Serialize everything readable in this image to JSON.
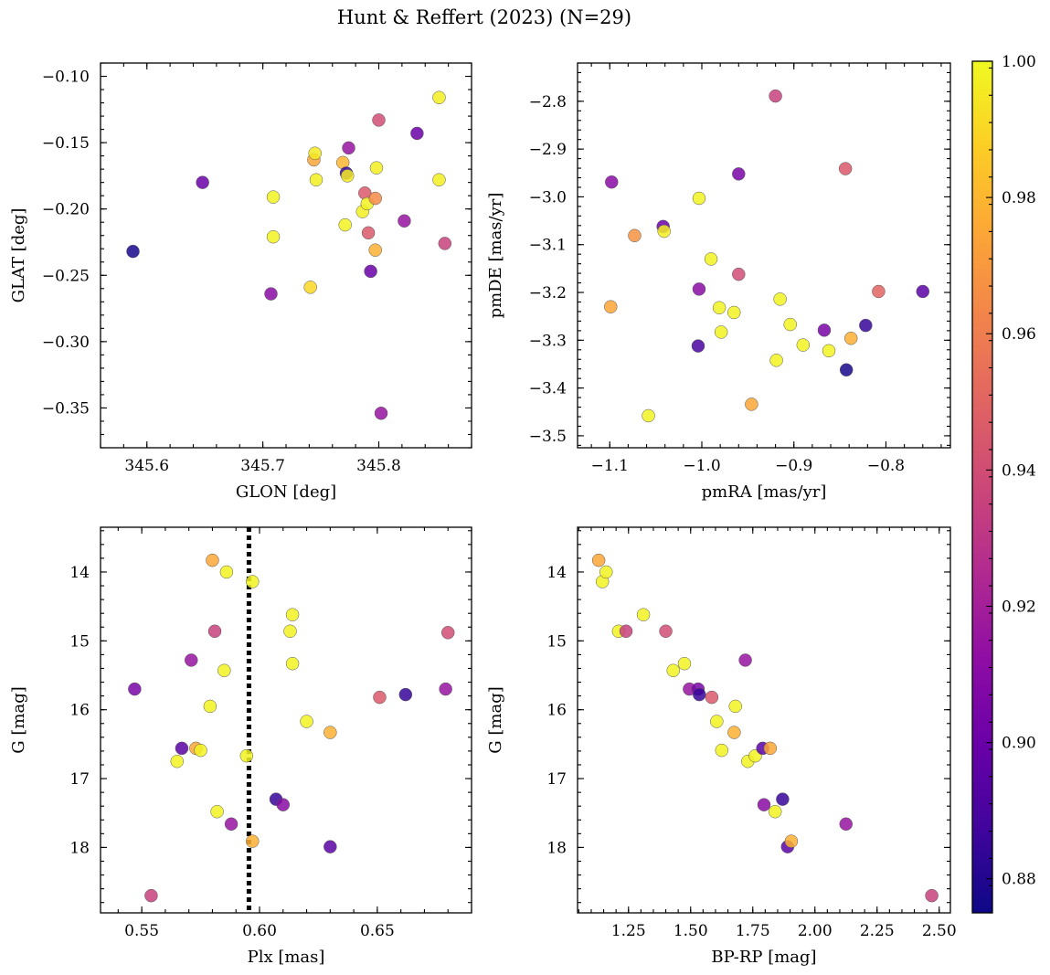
{
  "figure": {
    "title": "Hunt & Reffert (2023) (N=29)"
  },
  "colorbar": {
    "min": 0.875,
    "max": 1.0,
    "colormap": "plasma",
    "tick_labels": [
      "0.88",
      "0.90",
      "0.92",
      "0.94",
      "0.96",
      "0.98",
      "1.00"
    ],
    "ticks": [
      0.88,
      0.9,
      0.92,
      0.94,
      0.96,
      0.98,
      1.0
    ]
  },
  "chart_data": [
    {
      "type": "scatter",
      "xlabel": "GLON [deg]",
      "ylabel": "GLAT [deg]",
      "xlim": [
        345.56,
        345.88
      ],
      "ylim": [
        -0.38,
        -0.09
      ],
      "x_ticks": [
        345.6,
        345.7,
        345.8
      ],
      "x_tick_labels": [
        "345.6",
        "345.7",
        "345.8"
      ],
      "y_ticks": [
        -0.35,
        -0.3,
        -0.25,
        -0.2,
        -0.15,
        -0.1
      ],
      "y_tick_labels": [
        "−0.35",
        "−0.30",
        "−0.25",
        "−0.20",
        "−0.15",
        "−0.10"
      ],
      "y_inverted": false,
      "points": [
        {
          "x": 345.588,
          "y": -0.232,
          "c": 0.878
        },
        {
          "x": 345.648,
          "y": -0.18,
          "c": 0.9
        },
        {
          "x": 345.707,
          "y": -0.264,
          "c": 0.91
        },
        {
          "x": 345.709,
          "y": -0.191,
          "c": 0.998
        },
        {
          "x": 345.709,
          "y": -0.221,
          "c": 0.998
        },
        {
          "x": 345.741,
          "y": -0.259,
          "c": 0.99
        },
        {
          "x": 345.744,
          "y": -0.163,
          "c": 0.975
        },
        {
          "x": 345.745,
          "y": -0.158,
          "c": 0.996
        },
        {
          "x": 345.746,
          "y": -0.178,
          "c": 0.997
        },
        {
          "x": 345.769,
          "y": -0.165,
          "c": 0.98
        },
        {
          "x": 345.771,
          "y": -0.212,
          "c": 0.998
        },
        {
          "x": 345.772,
          "y": -0.173,
          "c": 0.885
        },
        {
          "x": 345.773,
          "y": -0.175,
          "c": 0.996
        },
        {
          "x": 345.774,
          "y": -0.154,
          "c": 0.915
        },
        {
          "x": 345.786,
          "y": -0.202,
          "c": 0.997
        },
        {
          "x": 345.788,
          "y": -0.188,
          "c": 0.945
        },
        {
          "x": 345.79,
          "y": -0.196,
          "c": 0.998
        },
        {
          "x": 345.791,
          "y": -0.218,
          "c": 0.945
        },
        {
          "x": 345.793,
          "y": -0.247,
          "c": 0.9
        },
        {
          "x": 345.797,
          "y": -0.231,
          "c": 0.978
        },
        {
          "x": 345.797,
          "y": -0.192,
          "c": 0.965
        },
        {
          "x": 345.798,
          "y": -0.169,
          "c": 0.997
        },
        {
          "x": 345.8,
          "y": -0.133,
          "c": 0.94
        },
        {
          "x": 345.802,
          "y": -0.354,
          "c": 0.915
        },
        {
          "x": 345.822,
          "y": -0.209,
          "c": 0.915
        },
        {
          "x": 345.833,
          "y": -0.143,
          "c": 0.9
        },
        {
          "x": 345.852,
          "y": -0.116,
          "c": 0.997
        },
        {
          "x": 345.852,
          "y": -0.178,
          "c": 0.997
        },
        {
          "x": 345.857,
          "y": -0.226,
          "c": 0.935
        }
      ]
    },
    {
      "type": "scatter",
      "xlabel": "pmRA [mas/yr]",
      "ylabel": "pmDE [mas/yr]",
      "xlim": [
        -1.135,
        -0.73
      ],
      "ylim": [
        -3.525,
        -2.72
      ],
      "x_ticks": [
        -1.1,
        -1.0,
        -0.9,
        -0.8
      ],
      "x_tick_labels": [
        "−1.1",
        "−1.0",
        "−0.9",
        "−0.8"
      ],
      "y_ticks": [
        -3.5,
        -3.4,
        -3.3,
        -3.2,
        -3.1,
        -3.0,
        -2.9,
        -2.8
      ],
      "y_tick_labels": [
        "−3.5",
        "−3.4",
        "−3.3",
        "−3.2",
        "−3.1",
        "−3.0",
        "−2.9",
        "−2.8"
      ],
      "y_inverted": false,
      "points": [
        {
          "x": -1.099,
          "y": -3.23,
          "c": 0.975
        },
        {
          "x": -1.098,
          "y": -2.969,
          "c": 0.91
        },
        {
          "x": -1.073,
          "y": -3.081,
          "c": 0.968
        },
        {
          "x": -1.058,
          "y": -3.458,
          "c": 0.998
        },
        {
          "x": -1.042,
          "y": -3.062,
          "c": 0.9
        },
        {
          "x": -1.041,
          "y": -3.072,
          "c": 0.997
        },
        {
          "x": -1.003,
          "y": -3.003,
          "c": 0.998
        },
        {
          "x": -1.003,
          "y": -3.193,
          "c": 0.91
        },
        {
          "x": -1.004,
          "y": -3.312,
          "c": 0.89
        },
        {
          "x": -0.99,
          "y": -3.13,
          "c": 0.998
        },
        {
          "x": -0.981,
          "y": -3.232,
          "c": 0.998
        },
        {
          "x": -0.979,
          "y": -3.283,
          "c": 0.998
        },
        {
          "x": -0.965,
          "y": -3.242,
          "c": 0.998
        },
        {
          "x": -0.96,
          "y": -2.952,
          "c": 0.905
        },
        {
          "x": -0.96,
          "y": -3.162,
          "c": 0.94
        },
        {
          "x": -0.946,
          "y": -3.434,
          "c": 0.975
        },
        {
          "x": -0.92,
          "y": -2.789,
          "c": 0.935
        },
        {
          "x": -0.919,
          "y": -3.342,
          "c": 0.998
        },
        {
          "x": -0.915,
          "y": -3.214,
          "c": 0.998
        },
        {
          "x": -0.904,
          "y": -3.267,
          "c": 0.998
        },
        {
          "x": -0.89,
          "y": -3.31,
          "c": 0.998
        },
        {
          "x": -0.867,
          "y": -3.279,
          "c": 0.905
        },
        {
          "x": -0.862,
          "y": -3.322,
          "c": 0.998
        },
        {
          "x": -0.844,
          "y": -2.941,
          "c": 0.945
        },
        {
          "x": -0.843,
          "y": -3.362,
          "c": 0.878
        },
        {
          "x": -0.838,
          "y": -3.296,
          "c": 0.978
        },
        {
          "x": -0.822,
          "y": -3.269,
          "c": 0.885
        },
        {
          "x": -0.808,
          "y": -3.198,
          "c": 0.95
        },
        {
          "x": -0.76,
          "y": -3.198,
          "c": 0.895
        }
      ]
    },
    {
      "type": "scatter",
      "xlabel": "Plx [mas]",
      "ylabel": "G [mag]",
      "xlim": [
        0.5325,
        0.69
      ],
      "ylim": [
        18.95,
        13.35
      ],
      "x_ticks": [
        0.55,
        0.6,
        0.65
      ],
      "x_tick_labels": [
        "0.55",
        "0.60",
        "0.65"
      ],
      "y_ticks": [
        14,
        15,
        16,
        17,
        18
      ],
      "y_tick_labels": [
        "14",
        "15",
        "16",
        "17",
        "18"
      ],
      "y_inverted": true,
      "vline": {
        "x": 0.5955,
        "style": "dotted",
        "color": "#000000"
      },
      "points": [
        {
          "x": 0.547,
          "y": 15.7,
          "c": 0.905
        },
        {
          "x": 0.554,
          "y": 18.7,
          "c": 0.935
        },
        {
          "x": 0.565,
          "y": 16.75,
          "c": 0.998
        },
        {
          "x": 0.567,
          "y": 16.56,
          "c": 0.895
        },
        {
          "x": 0.571,
          "y": 15.28,
          "c": 0.915
        },
        {
          "x": 0.573,
          "y": 16.56,
          "c": 0.975
        },
        {
          "x": 0.575,
          "y": 16.59,
          "c": 0.998
        },
        {
          "x": 0.579,
          "y": 15.95,
          "c": 0.998
        },
        {
          "x": 0.58,
          "y": 13.83,
          "c": 0.975
        },
        {
          "x": 0.581,
          "y": 14.86,
          "c": 0.935
        },
        {
          "x": 0.582,
          "y": 17.48,
          "c": 0.998
        },
        {
          "x": 0.585,
          "y": 15.43,
          "c": 0.998
        },
        {
          "x": 0.586,
          "y": 14.0,
          "c": 0.998
        },
        {
          "x": 0.588,
          "y": 17.66,
          "c": 0.915
        },
        {
          "x": 0.5945,
          "y": 16.67,
          "c": 0.998
        },
        {
          "x": 0.597,
          "y": 14.14,
          "c": 0.998
        },
        {
          "x": 0.597,
          "y": 17.91,
          "c": 0.978
        },
        {
          "x": 0.607,
          "y": 17.3,
          "c": 0.885
        },
        {
          "x": 0.61,
          "y": 17.38,
          "c": 0.91
        },
        {
          "x": 0.613,
          "y": 14.86,
          "c": 0.998
        },
        {
          "x": 0.614,
          "y": 14.62,
          "c": 0.998
        },
        {
          "x": 0.614,
          "y": 15.33,
          "c": 0.998
        },
        {
          "x": 0.62,
          "y": 16.17,
          "c": 0.998
        },
        {
          "x": 0.63,
          "y": 16.33,
          "c": 0.978
        },
        {
          "x": 0.63,
          "y": 17.99,
          "c": 0.895
        },
        {
          "x": 0.651,
          "y": 15.82,
          "c": 0.945
        },
        {
          "x": 0.662,
          "y": 15.78,
          "c": 0.885
        },
        {
          "x": 0.679,
          "y": 15.7,
          "c": 0.915
        },
        {
          "x": 0.68,
          "y": 14.88,
          "c": 0.94
        }
      ]
    },
    {
      "type": "scatter",
      "xlabel": "BP-RP [mag]",
      "ylabel": "G [mag]",
      "xlim": [
        1.045,
        2.545
      ],
      "ylim": [
        18.95,
        13.35
      ],
      "x_ticks": [
        1.25,
        1.5,
        1.75,
        2.0,
        2.25,
        2.5
      ],
      "x_tick_labels": [
        "1.25",
        "1.50",
        "1.75",
        "2.00",
        "2.25",
        "2.50"
      ],
      "y_ticks": [
        14,
        15,
        16,
        17,
        18
      ],
      "y_tick_labels": [
        "14",
        "15",
        "16",
        "17",
        "18"
      ],
      "y_inverted": true,
      "points": [
        {
          "x": 1.13,
          "y": 13.83,
          "c": 0.975
        },
        {
          "x": 1.145,
          "y": 14.14,
          "c": 0.998
        },
        {
          "x": 1.16,
          "y": 14.0,
          "c": 0.998
        },
        {
          "x": 1.21,
          "y": 14.86,
          "c": 0.998
        },
        {
          "x": 1.24,
          "y": 14.86,
          "c": 0.935
        },
        {
          "x": 1.31,
          "y": 14.62,
          "c": 0.998
        },
        {
          "x": 1.4,
          "y": 14.86,
          "c": 0.94
        },
        {
          "x": 1.43,
          "y": 15.43,
          "c": 0.998
        },
        {
          "x": 1.475,
          "y": 15.33,
          "c": 0.998
        },
        {
          "x": 1.495,
          "y": 15.7,
          "c": 0.915
        },
        {
          "x": 1.53,
          "y": 15.7,
          "c": 0.905
        },
        {
          "x": 1.535,
          "y": 15.78,
          "c": 0.885
        },
        {
          "x": 1.585,
          "y": 15.82,
          "c": 0.945
        },
        {
          "x": 1.605,
          "y": 16.17,
          "c": 0.998
        },
        {
          "x": 1.625,
          "y": 16.59,
          "c": 0.998
        },
        {
          "x": 1.675,
          "y": 16.33,
          "c": 0.978
        },
        {
          "x": 1.68,
          "y": 15.95,
          "c": 0.998
        },
        {
          "x": 1.72,
          "y": 15.28,
          "c": 0.915
        },
        {
          "x": 1.73,
          "y": 16.75,
          "c": 0.998
        },
        {
          "x": 1.76,
          "y": 16.67,
          "c": 0.998
        },
        {
          "x": 1.79,
          "y": 16.56,
          "c": 0.895
        },
        {
          "x": 1.795,
          "y": 17.38,
          "c": 0.91
        },
        {
          "x": 1.82,
          "y": 16.56,
          "c": 0.975
        },
        {
          "x": 1.84,
          "y": 17.48,
          "c": 0.998
        },
        {
          "x": 1.87,
          "y": 17.3,
          "c": 0.885
        },
        {
          "x": 1.89,
          "y": 17.99,
          "c": 0.895
        },
        {
          "x": 1.905,
          "y": 17.91,
          "c": 0.978
        },
        {
          "x": 2.125,
          "y": 17.66,
          "c": 0.915
        },
        {
          "x": 2.47,
          "y": 18.7,
          "c": 0.935
        }
      ]
    }
  ]
}
